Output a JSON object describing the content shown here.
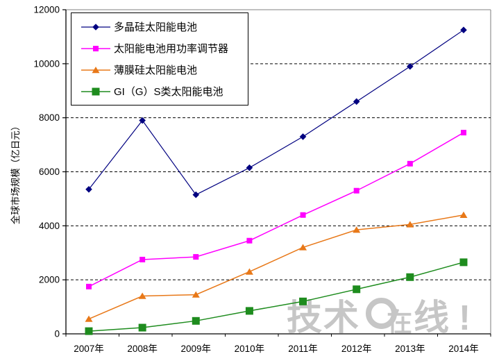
{
  "chart_data": {
    "type": "line",
    "title": "",
    "xlabel": "",
    "ylabel": "全球市场规模（亿日元）",
    "categories": [
      "2007年",
      "2008年",
      "2009年",
      "2010年",
      "2011年",
      "2012年",
      "2013年",
      "2014年"
    ],
    "series": [
      {
        "name": "多晶硅太阳能电池",
        "color": "#000080",
        "marker": "diamond",
        "line_width": 1.2,
        "values": [
          5350,
          7900,
          5150,
          6150,
          7300,
          8600,
          9900,
          11250
        ]
      },
      {
        "name": "太阳能电池用功率调节器",
        "color": "#FF00FF",
        "marker": "square",
        "line_width": 1.5,
        "values": [
          1750,
          2750,
          2850,
          3450,
          4400,
          5300,
          6300,
          7450
        ]
      },
      {
        "name": "薄膜硅太阳能电池",
        "color": "#E87818",
        "marker": "triangle",
        "line_width": 1.5,
        "values": [
          550,
          1400,
          1450,
          2300,
          3200,
          3850,
          4050,
          4400
        ]
      },
      {
        "name": "GI（G）S类太阳能电池",
        "color": "#1E8C1E",
        "marker": "square-large",
        "line_width": 1.5,
        "values": [
          100,
          230,
          480,
          850,
          1200,
          1650,
          2100,
          2650
        ]
      }
    ],
    "ylim": [
      0,
      12000
    ],
    "yticks": [
      0,
      2000,
      4000,
      6000,
      8000,
      10000,
      12000
    ],
    "grid": "horizontal-dashed",
    "legend_position": "top-left-inside",
    "axis_color": "#000000",
    "plot_border_color": "#9a9a9a",
    "gridline_color": "#000000",
    "tick_label_color": "#000000"
  },
  "watermark": {
    "prefix": "技术",
    "circled_char": "在",
    "suffix": "线",
    "exclamation": "!",
    "color": "#c6c6c6"
  }
}
